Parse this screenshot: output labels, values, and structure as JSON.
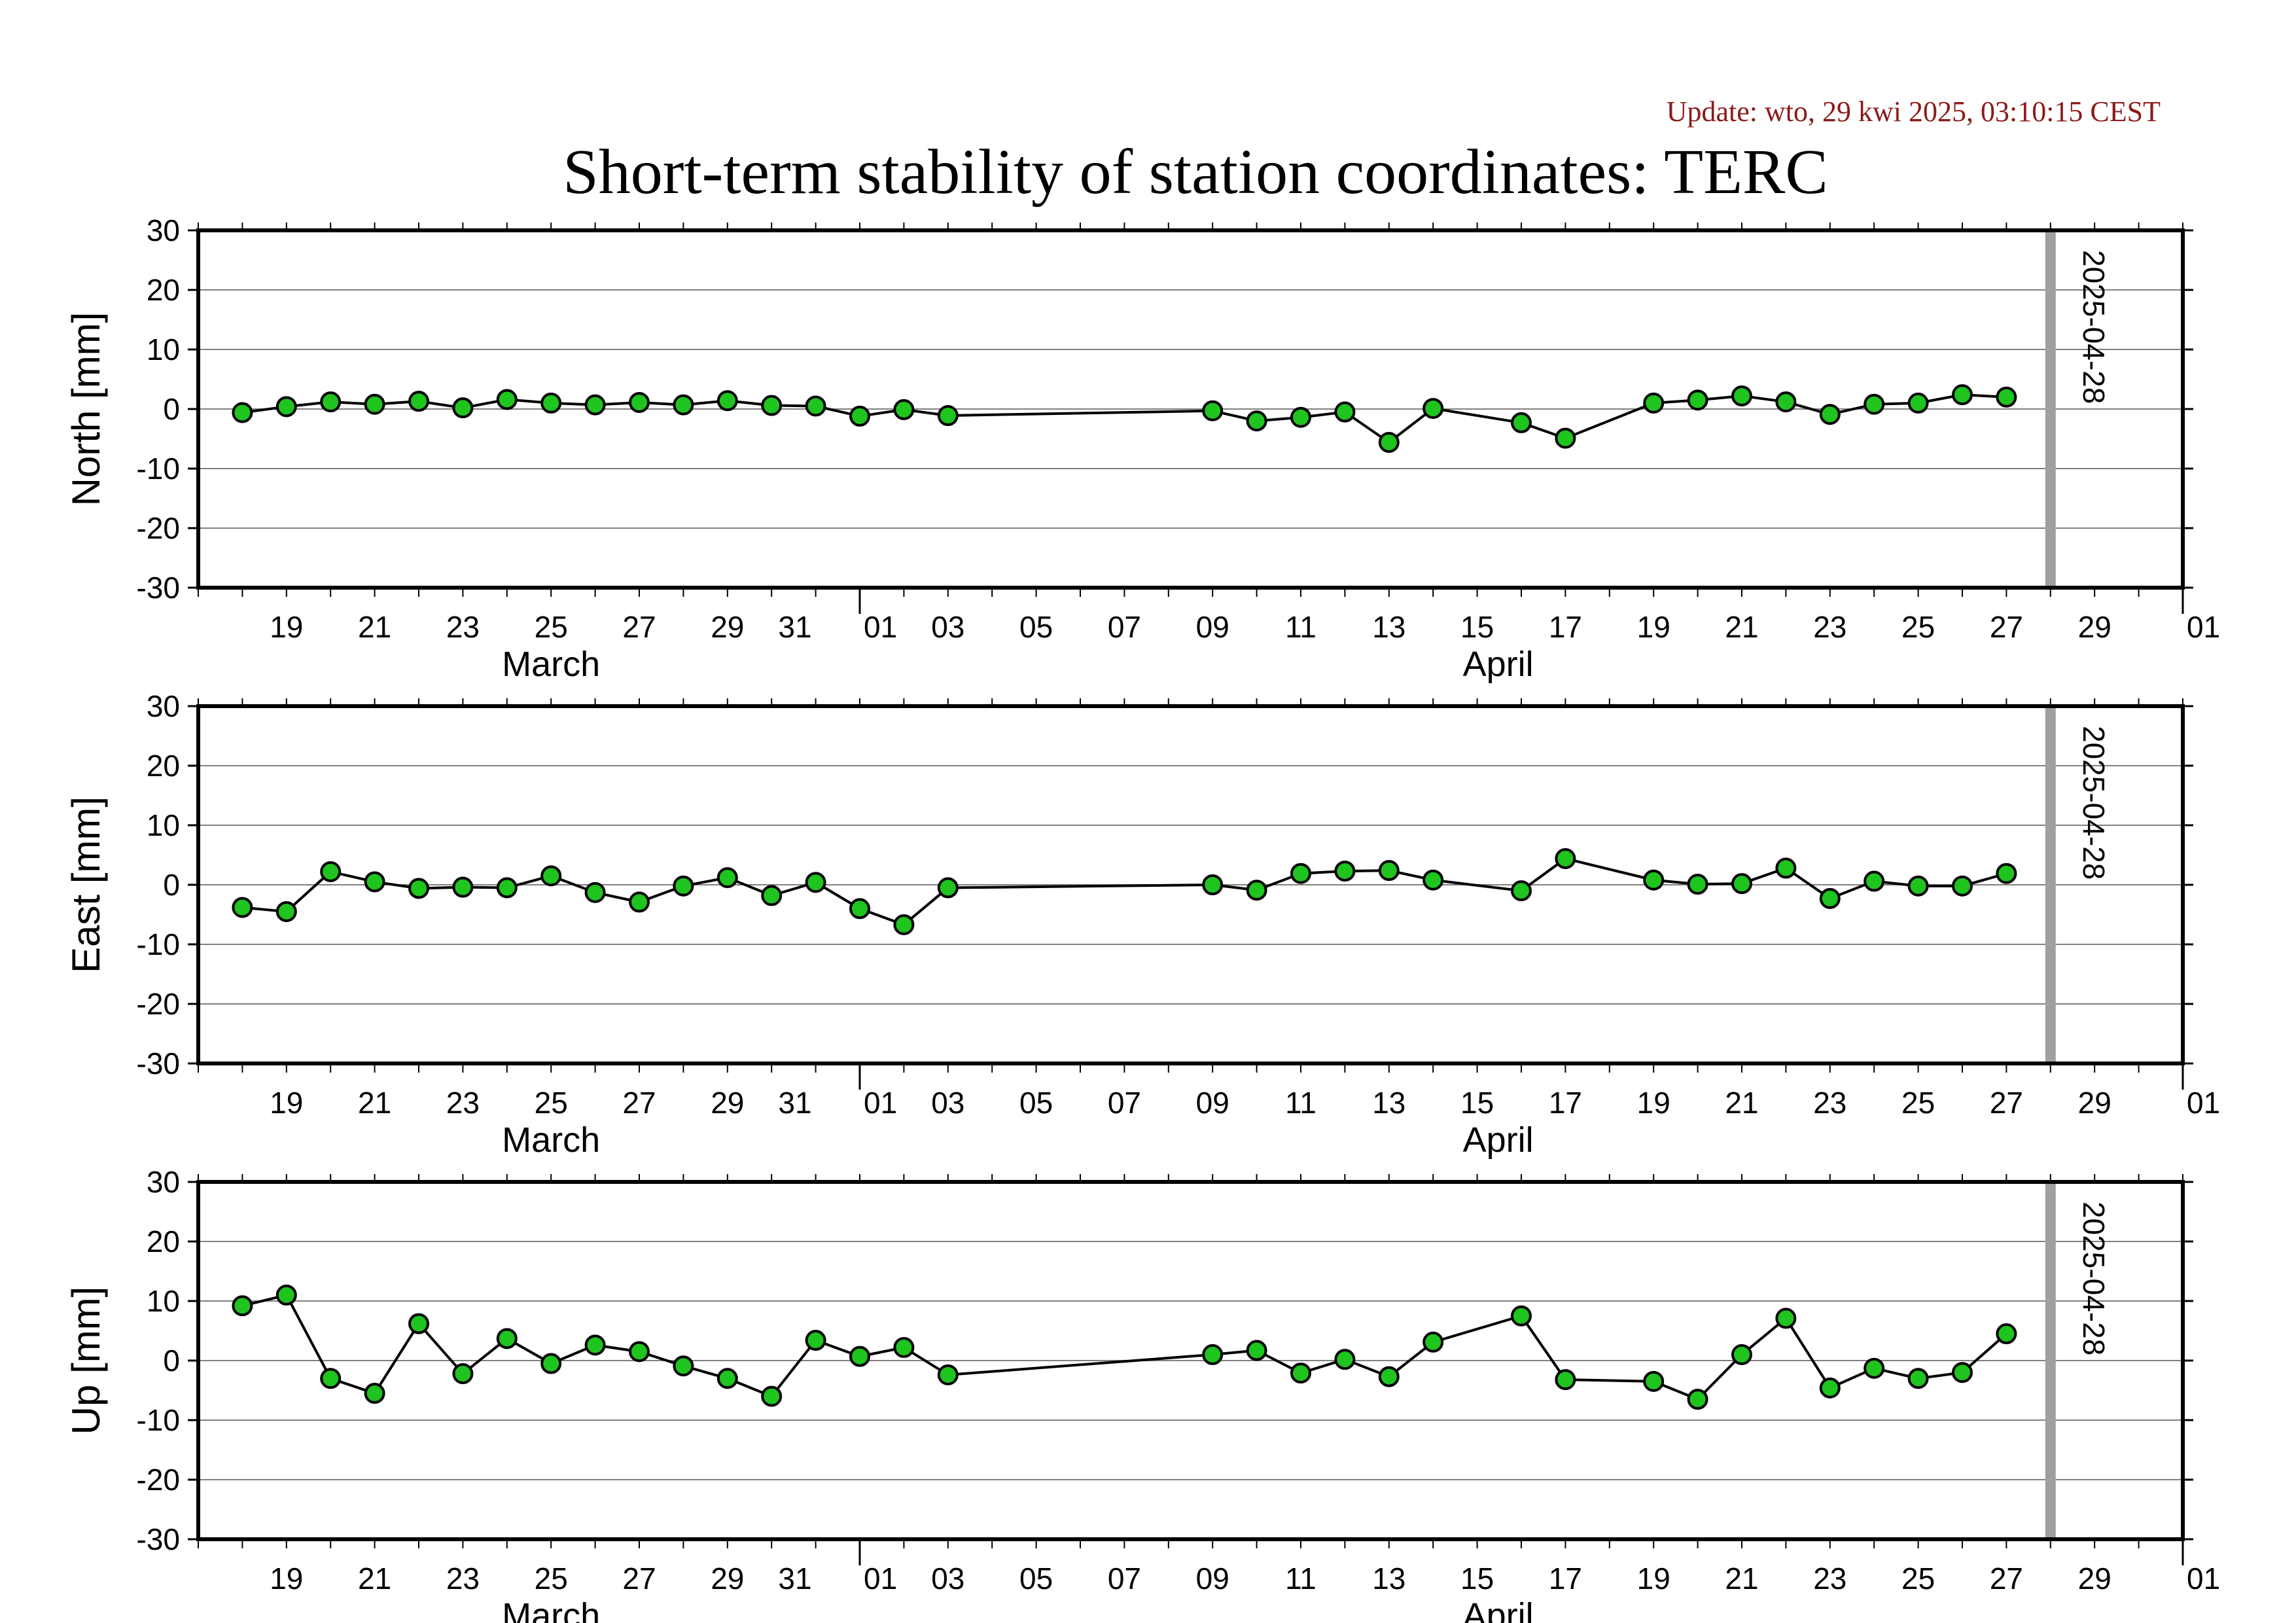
{
  "header": {
    "update": "Update: wto, 29 kwi 2025, 03:10:15 CEST",
    "title": "Short-term stability of station coordinates: TERC"
  },
  "colors": {
    "point_fill": "#1fc41f",
    "point_stroke": "#000000",
    "line": "#000000",
    "grid": "#808080",
    "marker": "#a0a0a0",
    "update_text": "#8b1a1a"
  },
  "chart_data": [
    {
      "type": "line",
      "ylabel": "North [mm]",
      "ylim": [
        -30,
        30
      ],
      "yticks": [
        30,
        20,
        10,
        0,
        -10,
        -20,
        -30
      ],
      "grid": true,
      "xlim": [
        "2025-03-17",
        "2025-05-02"
      ],
      "x_ticks": [
        "19",
        "21",
        "23",
        "25",
        "27",
        "29",
        "31",
        "01",
        "03",
        "05",
        "07",
        "09",
        "11",
        "13",
        "15",
        "17",
        "19",
        "21",
        "23",
        "25",
        "27",
        "29",
        "01"
      ],
      "x_months": [
        "March",
        "April"
      ],
      "marker": {
        "date": "2025-04-28",
        "label": "2025-04-28"
      },
      "series": [
        {
          "points": [
            [
              "2025-03-18",
              -0.6
            ],
            [
              "2025-03-19",
              0.4
            ],
            [
              "2025-03-20",
              1.2
            ],
            [
              "2025-03-21",
              0.8
            ],
            [
              "2025-03-22",
              1.3
            ],
            [
              "2025-03-23",
              0.2
            ],
            [
              "2025-03-24",
              1.6
            ],
            [
              "2025-03-25",
              1.0
            ],
            [
              "2025-03-26",
              0.7
            ],
            [
              "2025-03-27",
              1.1
            ],
            [
              "2025-03-28",
              0.7
            ],
            [
              "2025-03-29",
              1.4
            ],
            [
              "2025-03-30",
              0.6
            ],
            [
              "2025-03-31",
              0.5
            ],
            [
              "2025-04-01",
              -1.2
            ],
            [
              "2025-04-02",
              -0.1
            ],
            [
              "2025-04-03",
              -1.1
            ],
            [
              "2025-04-09",
              -0.3
            ],
            [
              "2025-04-10",
              -2.0
            ],
            [
              "2025-04-11",
              -1.4
            ],
            [
              "2025-04-12",
              -0.5
            ],
            [
              "2025-04-13",
              -5.6
            ],
            [
              "2025-04-14",
              0.1
            ],
            [
              "2025-04-16",
              -2.3
            ],
            [
              "2025-04-17",
              -4.9
            ],
            [
              "2025-04-19",
              1.0
            ],
            [
              "2025-04-20",
              1.5
            ],
            [
              "2025-04-21",
              2.2
            ],
            [
              "2025-04-22",
              1.2
            ],
            [
              "2025-04-23",
              -0.9
            ],
            [
              "2025-04-24",
              0.8
            ],
            [
              "2025-04-25",
              1.0
            ],
            [
              "2025-04-26",
              2.4
            ],
            [
              "2025-04-27",
              2.0
            ]
          ]
        }
      ]
    },
    {
      "type": "line",
      "ylabel": "East [mm]",
      "ylim": [
        -30,
        30
      ],
      "yticks": [
        30,
        20,
        10,
        0,
        -10,
        -20,
        -30
      ],
      "grid": true,
      "xlim": [
        "2025-03-17",
        "2025-05-02"
      ],
      "x_ticks": [
        "19",
        "21",
        "23",
        "25",
        "27",
        "29",
        "31",
        "01",
        "03",
        "05",
        "07",
        "09",
        "11",
        "13",
        "15",
        "17",
        "19",
        "21",
        "23",
        "25",
        "27",
        "29",
        "01"
      ],
      "x_months": [
        "March",
        "April"
      ],
      "marker": {
        "date": "2025-04-28",
        "label": "2025-04-28"
      },
      "series": [
        {
          "points": [
            [
              "2025-03-18",
              -3.8
            ],
            [
              "2025-03-19",
              -4.5
            ],
            [
              "2025-03-20",
              2.2
            ],
            [
              "2025-03-21",
              0.5
            ],
            [
              "2025-03-22",
              -0.6
            ],
            [
              "2025-03-23",
              -0.4
            ],
            [
              "2025-03-24",
              -0.5
            ],
            [
              "2025-03-25",
              1.5
            ],
            [
              "2025-03-26",
              -1.3
            ],
            [
              "2025-03-27",
              -2.9
            ],
            [
              "2025-03-28",
              -0.2
            ],
            [
              "2025-03-29",
              1.2
            ],
            [
              "2025-03-30",
              -1.8
            ],
            [
              "2025-03-31",
              0.4
            ],
            [
              "2025-04-01",
              -4.0
            ],
            [
              "2025-04-02",
              -6.7
            ],
            [
              "2025-04-03",
              -0.5
            ],
            [
              "2025-04-09",
              0.0
            ],
            [
              "2025-04-10",
              -0.9
            ],
            [
              "2025-04-11",
              1.9
            ],
            [
              "2025-04-12",
              2.3
            ],
            [
              "2025-04-13",
              2.4
            ],
            [
              "2025-04-14",
              0.8
            ],
            [
              "2025-04-16",
              -1.0
            ],
            [
              "2025-04-17",
              4.4
            ],
            [
              "2025-04-19",
              0.8
            ],
            [
              "2025-04-20",
              0.1
            ],
            [
              "2025-04-21",
              0.2
            ],
            [
              "2025-04-22",
              2.8
            ],
            [
              "2025-04-23",
              -2.3
            ],
            [
              "2025-04-24",
              0.6
            ],
            [
              "2025-04-25",
              -0.2
            ],
            [
              "2025-04-26",
              -0.2
            ],
            [
              "2025-04-27",
              1.9
            ]
          ]
        }
      ]
    },
    {
      "type": "line",
      "ylabel": "Up [mm]",
      "ylim": [
        -30,
        30
      ],
      "yticks": [
        30,
        20,
        10,
        0,
        -10,
        -20,
        -30
      ],
      "grid": true,
      "xlim": [
        "2025-03-17",
        "2025-05-02"
      ],
      "x_ticks": [
        "19",
        "21",
        "23",
        "25",
        "27",
        "29",
        "31",
        "01",
        "03",
        "05",
        "07",
        "09",
        "11",
        "13",
        "15",
        "17",
        "19",
        "21",
        "23",
        "25",
        "27",
        "29",
        "01"
      ],
      "x_months": [
        "March",
        "April"
      ],
      "marker": {
        "date": "2025-04-28",
        "label": "2025-04-28"
      },
      "series": [
        {
          "points": [
            [
              "2025-03-18",
              9.2
            ],
            [
              "2025-03-19",
              11.0
            ],
            [
              "2025-03-20",
              -3.0
            ],
            [
              "2025-03-21",
              -5.5
            ],
            [
              "2025-03-22",
              6.2
            ],
            [
              "2025-03-23",
              -2.2
            ],
            [
              "2025-03-24",
              3.7
            ],
            [
              "2025-03-25",
              -0.5
            ],
            [
              "2025-03-26",
              2.6
            ],
            [
              "2025-03-27",
              1.5
            ],
            [
              "2025-03-28",
              -0.9
            ],
            [
              "2025-03-29",
              -3.0
            ],
            [
              "2025-03-30",
              -6.0
            ],
            [
              "2025-03-31",
              3.4
            ],
            [
              "2025-04-01",
              0.7
            ],
            [
              "2025-04-02",
              2.2
            ],
            [
              "2025-04-03",
              -2.4
            ],
            [
              "2025-04-09",
              1.0
            ],
            [
              "2025-04-10",
              1.7
            ],
            [
              "2025-04-11",
              -2.1
            ],
            [
              "2025-04-12",
              0.2
            ],
            [
              "2025-04-13",
              -2.7
            ],
            [
              "2025-04-14",
              3.1
            ],
            [
              "2025-04-16",
              7.5
            ],
            [
              "2025-04-17",
              -3.2
            ],
            [
              "2025-04-19",
              -3.5
            ],
            [
              "2025-04-20",
              -6.5
            ],
            [
              "2025-04-21",
              1.0
            ],
            [
              "2025-04-22",
              7.1
            ],
            [
              "2025-04-23",
              -4.6
            ],
            [
              "2025-04-24",
              -1.3
            ],
            [
              "2025-04-25",
              -3.0
            ],
            [
              "2025-04-26",
              -2.0
            ],
            [
              "2025-04-27",
              4.5
            ]
          ]
        }
      ]
    }
  ]
}
